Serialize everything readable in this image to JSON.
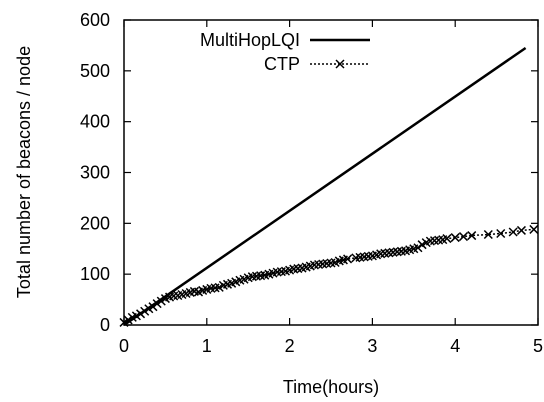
{
  "chart_data": {
    "type": "line",
    "title": "",
    "xlabel": "Time(hours)",
    "ylabel": "Total number of beacons / node",
    "xlim": [
      0,
      5
    ],
    "ylim": [
      0,
      600
    ],
    "xticks": [
      0,
      1,
      2,
      3,
      4,
      5
    ],
    "yticks": [
      0,
      100,
      200,
      300,
      400,
      500,
      600
    ],
    "grid": false,
    "legend_position": "top-left",
    "series": [
      {
        "name": "MultiHopLQI",
        "style": "solid",
        "color": "#000000",
        "marker": "none",
        "x": [
          0,
          4.85
        ],
        "y": [
          0,
          545
        ]
      },
      {
        "name": "CTP",
        "style": "dotted",
        "color": "#000000",
        "marker": "x",
        "x": [
          0,
          0.05,
          0.1,
          0.15,
          0.2,
          0.25,
          0.3,
          0.35,
          0.4,
          0.45,
          0.5,
          0.55,
          0.6,
          0.65,
          0.7,
          0.75,
          0.8,
          0.85,
          0.9,
          0.95,
          1.0,
          1.05,
          1.1,
          1.15,
          1.2,
          1.25,
          1.3,
          1.35,
          1.4,
          1.45,
          1.5,
          1.55,
          1.6,
          1.65,
          1.7,
          1.75,
          1.8,
          1.85,
          1.9,
          1.95,
          2.0,
          2.05,
          2.1,
          2.15,
          2.2,
          2.25,
          2.3,
          2.35,
          2.4,
          2.45,
          2.5,
          2.55,
          2.6,
          2.65,
          2.7,
          2.8,
          2.85,
          2.9,
          2.95,
          3.0,
          3.05,
          3.1,
          3.15,
          3.2,
          3.25,
          3.3,
          3.35,
          3.4,
          3.45,
          3.5,
          3.55,
          3.6,
          3.65,
          3.7,
          3.75,
          3.8,
          3.85,
          3.9,
          4.0,
          4.1,
          4.2,
          4.4,
          4.55,
          4.7,
          4.8,
          4.95
        ],
        "y": [
          5,
          10,
          15,
          18,
          22,
          27,
          32,
          36,
          42,
          47,
          52,
          55,
          57,
          58,
          60,
          62,
          64,
          66,
          65,
          68,
          70,
          72,
          73,
          74,
          78,
          80,
          82,
          85,
          88,
          90,
          93,
          95,
          96,
          97,
          98,
          100,
          102,
          104,
          105,
          106,
          108,
          110,
          111,
          112,
          114,
          116,
          118,
          119,
          120,
          121,
          122,
          123,
          126,
          128,
          130,
          132,
          133,
          134,
          135,
          136,
          138,
          140,
          141,
          142,
          143,
          144,
          145,
          146,
          148,
          150,
          152,
          158,
          162,
          165,
          166,
          167,
          168,
          170,
          172,
          174,
          176,
          178,
          180,
          183,
          186,
          188
        ]
      }
    ]
  }
}
